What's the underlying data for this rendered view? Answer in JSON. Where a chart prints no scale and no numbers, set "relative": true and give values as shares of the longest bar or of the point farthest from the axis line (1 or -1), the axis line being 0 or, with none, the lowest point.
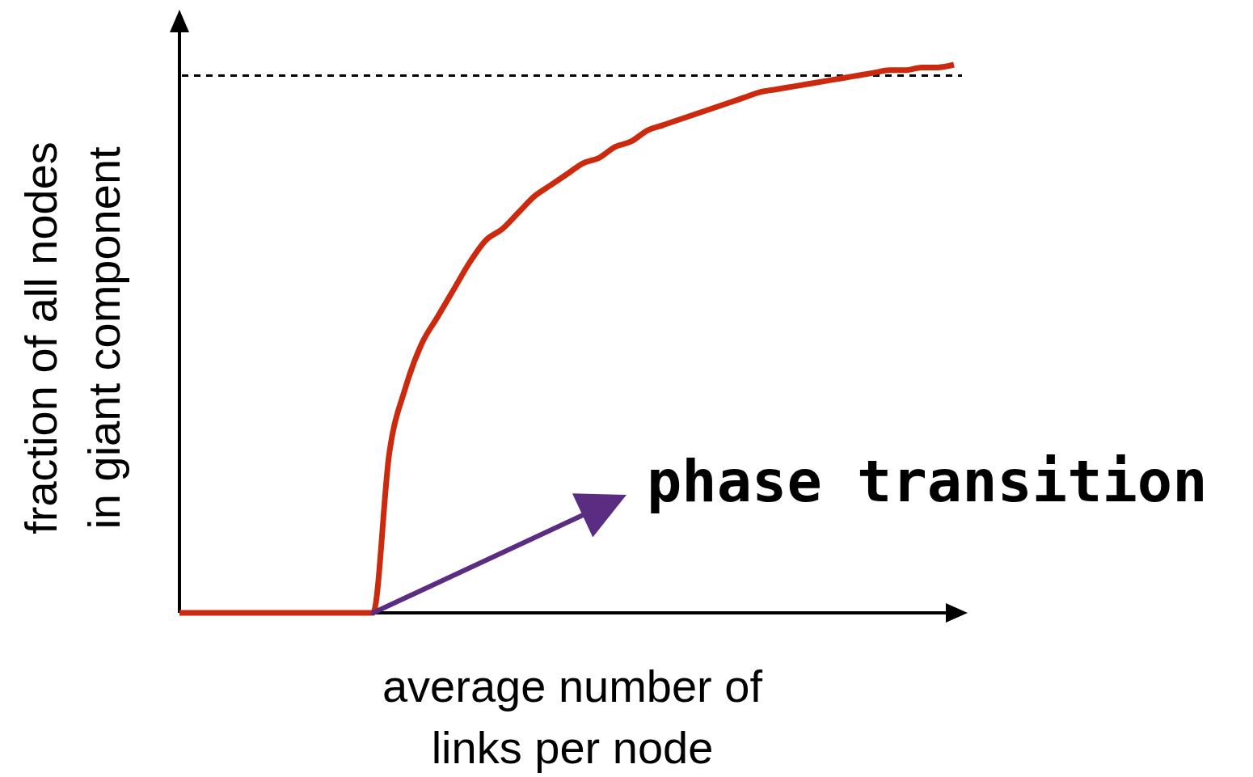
{
  "chart_data": {
    "type": "line",
    "relative": true,
    "xlabel": "average number of\nlinks per node",
    "ylabel": "fraction of all nodes\nin giant component",
    "categories": [
      null,
      null,
      null,
      null,
      null,
      null,
      null,
      null,
      null,
      null,
      null,
      null,
      null,
      null,
      null,
      null,
      null,
      null,
      null,
      null,
      null,
      null,
      null,
      null,
      null,
      null,
      null,
      null,
      null,
      null,
      null,
      null,
      null,
      null,
      null,
      null,
      null,
      null,
      null,
      null,
      null,
      null,
      null,
      null,
      null,
      null,
      null,
      null,
      null
    ],
    "series": [
      {
        "color": "#cc2a0e",
        "values": [
          0,
          0,
          0,
          0,
          0,
          0,
          0,
          0,
          0,
          0,
          0,
          0,
          0,
          0.29,
          0.41,
          0.49,
          0.54,
          0.59,
          0.64,
          0.68,
          0.7,
          0.73,
          0.76,
          0.78,
          0.8,
          0.82,
          0.83,
          0.85,
          0.86,
          0.88,
          0.89,
          0.9,
          0.91,
          0.92,
          0.93,
          0.94,
          0.95,
          0.955,
          0.96,
          0.965,
          0.97,
          0.975,
          0.98,
          0.985,
          0.99,
          0.99,
          0.995,
          0.995,
          1
        ]
      }
    ],
    "ref_lines": [
      {
        "axis": "y",
        "value": 0.98,
        "color": "#000000",
        "line_style": "dashed"
      }
    ],
    "annotations": [
      "phase transition"
    ],
    "line_style": "solid",
    "marker": "none"
  }
}
